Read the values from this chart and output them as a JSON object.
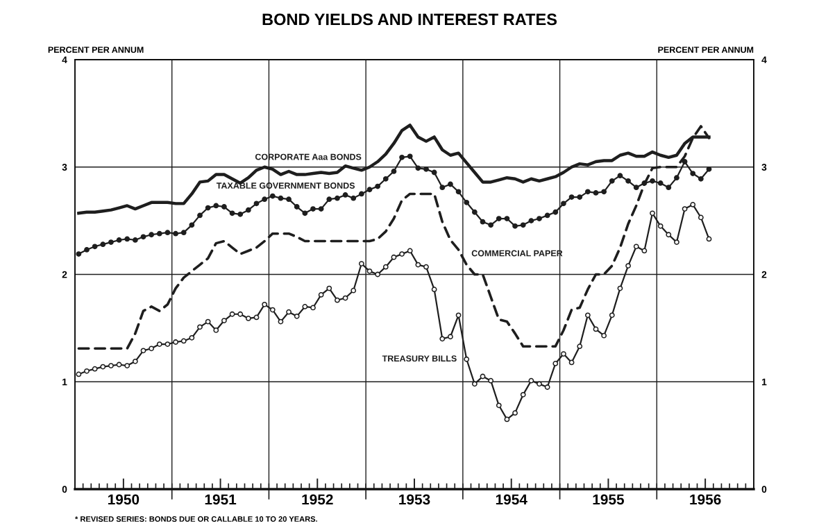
{
  "chart_data": {
    "type": "line",
    "title": "BOND YIELDS AND INTEREST RATES",
    "ylabel": "PERCENT PER ANNUM",
    "y2label": "PERCENT PER ANNUM",
    "annotations": [
      "* REVISED SERIES: BONDS DUE OR CALLABLE 10 TO 20 YEARS."
    ],
    "x": [
      "1950-01-15",
      "1950-02-15",
      "1950-03-15",
      "1950-04-15",
      "1950-05-15",
      "1950-06-15",
      "1950-07-15",
      "1950-08-15",
      "1950-09-15",
      "1950-10-15",
      "1950-11-15",
      "1950-12-15",
      "1951-01-15",
      "1951-02-15",
      "1951-03-15",
      "1951-04-15",
      "1951-05-15",
      "1951-06-15",
      "1951-07-15",
      "1951-08-15",
      "1951-09-15",
      "1951-10-15",
      "1951-11-15",
      "1951-12-15",
      "1952-01-15",
      "1952-02-15",
      "1952-03-15",
      "1952-04-15",
      "1952-05-15",
      "1952-06-15",
      "1952-07-15",
      "1952-08-15",
      "1952-09-15",
      "1952-10-15",
      "1952-11-15",
      "1952-12-15",
      "1953-01-15",
      "1953-02-15",
      "1953-03-15",
      "1953-04-15",
      "1953-05-15",
      "1953-06-15",
      "1953-07-15",
      "1953-08-15",
      "1953-09-15",
      "1953-10-15",
      "1953-11-15",
      "1953-12-15",
      "1954-01-15",
      "1954-02-15",
      "1954-03-15",
      "1954-04-15",
      "1954-05-15",
      "1954-06-15",
      "1954-07-15",
      "1954-08-15",
      "1954-09-15",
      "1954-10-15",
      "1954-11-15",
      "1954-12-15",
      "1955-01-15",
      "1955-02-15",
      "1955-03-15",
      "1955-04-15",
      "1955-05-15",
      "1955-06-15",
      "1955-07-15",
      "1955-08-15",
      "1955-09-15",
      "1955-10-15",
      "1955-11-15",
      "1955-12-15",
      "1956-01-15",
      "1956-02-15",
      "1956-03-15",
      "1956-04-15",
      "1956-05-15",
      "1956-06-15",
      "1956-07-15"
    ],
    "series": [
      {
        "name": "CORPORATE Aaa BONDS",
        "color": "#1e1e1e",
        "marker": "none",
        "line_style": "solid",
        "values": [
          2.57,
          2.58,
          2.58,
          2.59,
          2.6,
          2.62,
          2.64,
          2.61,
          2.64,
          2.67,
          2.67,
          2.67,
          2.66,
          2.66,
          2.75,
          2.86,
          2.87,
          2.93,
          2.93,
          2.89,
          2.85,
          2.9,
          2.97,
          3.0,
          2.98,
          2.93,
          2.96,
          2.93,
          2.93,
          2.94,
          2.95,
          2.94,
          2.95,
          3.01,
          2.99,
          2.97,
          3.0,
          3.05,
          3.12,
          3.22,
          3.34,
          3.39,
          3.28,
          3.24,
          3.28,
          3.16,
          3.11,
          3.13,
          3.04,
          2.95,
          2.86,
          2.86,
          2.88,
          2.9,
          2.89,
          2.86,
          2.89,
          2.87,
          2.89,
          2.91,
          2.95,
          3.0,
          3.03,
          3.02,
          3.05,
          3.06,
          3.06,
          3.11,
          3.13,
          3.1,
          3.1,
          3.14,
          3.11,
          3.09,
          3.11,
          3.22,
          3.28,
          3.28,
          3.28
        ]
      },
      {
        "name": "TAXABLE GOVERNMENT BONDS",
        "color": "#1e1e1e",
        "marker": "circle",
        "line_style": "solid",
        "values": [
          2.19,
          2.23,
          2.26,
          2.28,
          2.3,
          2.32,
          2.33,
          2.32,
          2.35,
          2.37,
          2.38,
          2.39,
          2.38,
          2.39,
          2.46,
          2.55,
          2.62,
          2.64,
          2.63,
          2.57,
          2.56,
          2.6,
          2.66,
          2.7,
          2.73,
          2.71,
          2.7,
          2.63,
          2.57,
          2.61,
          2.61,
          2.7,
          2.71,
          2.74,
          2.71,
          2.75,
          2.79,
          2.82,
          2.89,
          2.96,
          3.09,
          3.1,
          2.99,
          2.98,
          2.95,
          2.81,
          2.84,
          2.77,
          2.67,
          2.58,
          2.49,
          2.46,
          2.52,
          2.52,
          2.45,
          2.46,
          2.5,
          2.52,
          2.55,
          2.58,
          2.66,
          2.72,
          2.72,
          2.77,
          2.76,
          2.77,
          2.87,
          2.92,
          2.87,
          2.81,
          2.85,
          2.87,
          2.85,
          2.81,
          2.9,
          3.05,
          2.94,
          2.89,
          2.98
        ]
      },
      {
        "name": "COMMERCIAL PAPER",
        "color": "#1e1e1e",
        "marker": "none",
        "line_style": "dashed",
        "values": [
          1.31,
          1.31,
          1.31,
          1.31,
          1.31,
          1.31,
          1.31,
          1.45,
          1.66,
          1.7,
          1.66,
          1.72,
          1.87,
          1.97,
          2.03,
          2.09,
          2.15,
          2.29,
          2.31,
          2.25,
          2.19,
          2.22,
          2.25,
          2.31,
          2.38,
          2.38,
          2.38,
          2.35,
          2.31,
          2.31,
          2.31,
          2.31,
          2.31,
          2.31,
          2.31,
          2.31,
          2.31,
          2.33,
          2.4,
          2.52,
          2.69,
          2.75,
          2.75,
          2.75,
          2.75,
          2.49,
          2.32,
          2.23,
          2.09,
          2.0,
          2.0,
          1.79,
          1.58,
          1.56,
          1.45,
          1.33,
          1.33,
          1.33,
          1.33,
          1.33,
          1.48,
          1.67,
          1.69,
          1.86,
          2.0,
          2.0,
          2.08,
          2.25,
          2.47,
          2.64,
          2.84,
          2.99,
          3.0,
          3.0,
          3.0,
          3.1,
          3.27,
          3.38,
          3.27
        ]
      },
      {
        "name": "TREASURY BILLS",
        "color": "#1e1e1e",
        "marker": "circle",
        "line_style": "solid",
        "values": [
          1.07,
          1.1,
          1.12,
          1.14,
          1.15,
          1.16,
          1.15,
          1.19,
          1.29,
          1.31,
          1.35,
          1.35,
          1.37,
          1.38,
          1.41,
          1.51,
          1.56,
          1.48,
          1.57,
          1.63,
          1.63,
          1.59,
          1.6,
          1.72,
          1.67,
          1.56,
          1.65,
          1.61,
          1.7,
          1.69,
          1.81,
          1.87,
          1.76,
          1.78,
          1.85,
          2.1,
          2.03,
          2.0,
          2.07,
          2.16,
          2.19,
          2.22,
          2.09,
          2.07,
          1.86,
          1.4,
          1.42,
          1.62,
          1.21,
          0.98,
          1.05,
          1.01,
          0.78,
          0.65,
          0.71,
          0.88,
          1.01,
          0.98,
          0.95,
          1.17,
          1.26,
          1.18,
          1.33,
          1.62,
          1.49,
          1.43,
          1.62,
          1.87,
          2.08,
          2.26,
          2.22,
          2.57,
          2.45,
          2.37,
          2.3,
          2.61,
          2.65,
          2.53,
          2.33
        ]
      }
    ],
    "xlim": [
      "1950",
      "1957"
    ],
    "xticks": [
      {
        "value": "1950-02-01",
        "label": null
      },
      {
        "value": "1950-03-01",
        "label": null
      },
      {
        "value": "1950-04-01",
        "label": null
      },
      {
        "value": "1950-05-01",
        "label": null
      },
      {
        "value": "1950-06-01",
        "label": null
      },
      {
        "value": "1950-07-01",
        "label": "1950"
      },
      {
        "value": "1950-08-01",
        "label": null
      },
      {
        "value": "1950-09-01",
        "label": null
      },
      {
        "value": "1950-10-01",
        "label": null
      },
      {
        "value": "1950-11-01",
        "label": null
      },
      {
        "value": "1950-12-01",
        "label": null
      },
      {
        "value": "1951-01-01",
        "label": null
      },
      {
        "value": "1951-02-01",
        "label": null
      },
      {
        "value": "1951-03-01",
        "label": null
      },
      {
        "value": "1951-04-01",
        "label": null
      },
      {
        "value": "1951-05-01",
        "label": null
      },
      {
        "value": "1951-06-01",
        "label": null
      },
      {
        "value": "1951-07-01",
        "label": "1951"
      },
      {
        "value": "1951-08-01",
        "label": null
      },
      {
        "value": "1951-09-01",
        "label": null
      },
      {
        "value": "1951-10-01",
        "label": null
      },
      {
        "value": "1951-11-01",
        "label": null
      },
      {
        "value": "1951-12-01",
        "label": null
      },
      {
        "value": "1952-01-01",
        "label": null
      },
      {
        "value": "1952-02-01",
        "label": null
      },
      {
        "value": "1952-03-01",
        "label": null
      },
      {
        "value": "1952-04-01",
        "label": null
      },
      {
        "value": "1952-05-01",
        "label": null
      },
      {
        "value": "1952-06-01",
        "label": null
      },
      {
        "value": "1952-07-01",
        "label": "1952"
      },
      {
        "value": "1952-08-01",
        "label": null
      },
      {
        "value": "1952-09-01",
        "label": null
      },
      {
        "value": "1952-10-01",
        "label": null
      },
      {
        "value": "1952-11-01",
        "label": null
      },
      {
        "value": "1952-12-01",
        "label": null
      },
      {
        "value": "1953-01-01",
        "label": null
      },
      {
        "value": "1953-02-01",
        "label": null
      },
      {
        "value": "1953-03-01",
        "label": null
      },
      {
        "value": "1953-04-01",
        "label": null
      },
      {
        "value": "1953-05-01",
        "label": null
      },
      {
        "value": "1953-06-01",
        "label": null
      },
      {
        "value": "1953-07-01",
        "label": "1953"
      },
      {
        "value": "1953-08-01",
        "label": null
      },
      {
        "value": "1953-09-01",
        "label": null
      },
      {
        "value": "1953-10-01",
        "label": null
      },
      {
        "value": "1953-11-01",
        "label": null
      },
      {
        "value": "1953-12-01",
        "label": null
      },
      {
        "value": "1954-01-01",
        "label": null
      },
      {
        "value": "1954-02-01",
        "label": null
      },
      {
        "value": "1954-03-01",
        "label": null
      },
      {
        "value": "1954-04-01",
        "label": null
      },
      {
        "value": "1954-05-01",
        "label": null
      },
      {
        "value": "1954-06-01",
        "label": null
      },
      {
        "value": "1954-07-01",
        "label": "1954"
      },
      {
        "value": "1954-08-01",
        "label": null
      },
      {
        "value": "1954-09-01",
        "label": null
      },
      {
        "value": "1954-10-01",
        "label": null
      },
      {
        "value": "1954-11-01",
        "label": null
      },
      {
        "value": "1954-12-01",
        "label": null
      },
      {
        "value": "1955-01-01",
        "label": null
      },
      {
        "value": "1955-02-01",
        "label": null
      },
      {
        "value": "1955-03-01",
        "label": null
      },
      {
        "value": "1955-04-01",
        "label": null
      },
      {
        "value": "1955-05-01",
        "label": null
      },
      {
        "value": "1955-06-01",
        "label": null
      },
      {
        "value": "1955-07-01",
        "label": "1955"
      },
      {
        "value": "1955-08-01",
        "label": null
      },
      {
        "value": "1955-09-01",
        "label": null
      },
      {
        "value": "1955-10-01",
        "label": null
      },
      {
        "value": "1955-11-01",
        "label": null
      },
      {
        "value": "1955-12-01",
        "label": null
      },
      {
        "value": "1956-01-01",
        "label": null
      },
      {
        "value": "1956-02-01",
        "label": null
      },
      {
        "value": "1956-03-01",
        "label": null
      },
      {
        "value": "1956-04-01",
        "label": null
      },
      {
        "value": "1956-05-01",
        "label": null
      },
      {
        "value": "1956-06-01",
        "label": null
      },
      {
        "value": "1956-07-01",
        "label": "1956"
      },
      {
        "value": "1956-08-01",
        "label": null
      },
      {
        "value": "1956-09-01",
        "label": null
      },
      {
        "value": "1956-10-01",
        "label": null
      },
      {
        "value": "1956-11-01",
        "label": null
      },
      {
        "value": "1956-12-01",
        "label": null
      }
    ],
    "ylim": [
      0,
      4
    ],
    "yticks": [
      0,
      1,
      2,
      3,
      4
    ],
    "y2lim": [
      0,
      4
    ],
    "y2ticks": [
      0,
      1,
      2,
      3,
      4
    ],
    "ref_lines": [
      {
        "axis": "x",
        "value": "1951",
        "label": null,
        "color": "#1e1e1e"
      },
      {
        "axis": "x",
        "value": "1952",
        "label": null,
        "color": "#1e1e1e"
      },
      {
        "axis": "x",
        "value": "1953",
        "label": null,
        "color": "#1e1e1e"
      },
      {
        "axis": "x",
        "value": "1954",
        "label": null,
        "color": "#1e1e1e"
      },
      {
        "axis": "x",
        "value": "1955",
        "label": null,
        "color": "#1e1e1e"
      },
      {
        "axis": "x",
        "value": "1956",
        "label": null,
        "color": "#1e1e1e"
      }
    ],
    "grid": "y",
    "legend": false
  }
}
